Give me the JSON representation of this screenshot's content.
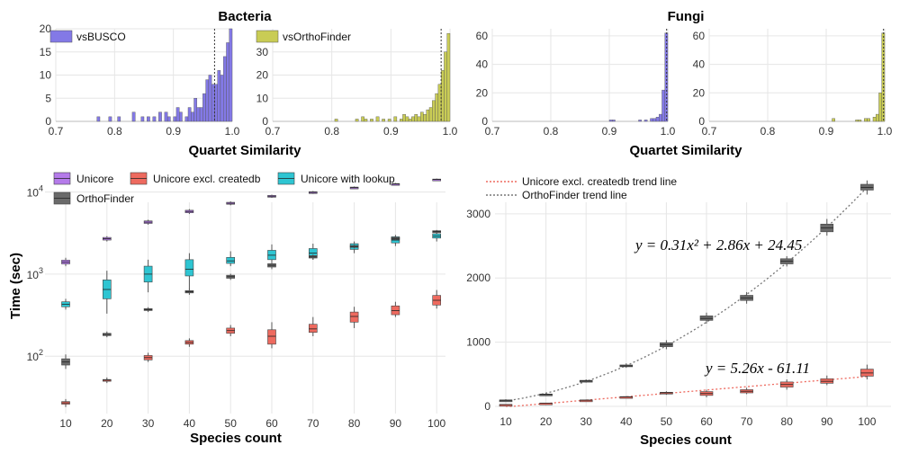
{
  "chart_data": [
    {
      "type": "bar",
      "panel": "Bacteria vsBUSCO histogram",
      "group_title": "Bacteria",
      "series": [
        {
          "name": "vsBUSCO",
          "color": "#8379E6",
          "bins": [
            [
              0.775,
              1
            ],
            [
              0.795,
              1
            ],
            [
              0.81,
              1
            ],
            [
              0.835,
              2
            ],
            [
              0.85,
              1
            ],
            [
              0.86,
              1
            ],
            [
              0.87,
              1
            ],
            [
              0.88,
              2
            ],
            [
              0.89,
              2
            ],
            [
              0.895,
              1
            ],
            [
              0.905,
              1
            ],
            [
              0.91,
              3
            ],
            [
              0.915,
              2
            ],
            [
              0.925,
              1
            ],
            [
              0.93,
              3
            ],
            [
              0.935,
              2
            ],
            [
              0.94,
              5
            ],
            [
              0.945,
              3
            ],
            [
              0.95,
              3
            ],
            [
              0.955,
              6
            ],
            [
              0.96,
              9
            ],
            [
              0.965,
              10
            ],
            [
              0.97,
              8
            ],
            [
              0.975,
              8
            ],
            [
              0.98,
              11
            ],
            [
              0.985,
              10
            ],
            [
              0.99,
              14
            ],
            [
              0.995,
              17
            ],
            [
              1.0,
              20
            ]
          ]
        }
      ],
      "xlim": [
        0.7,
        1.0
      ],
      "ylim": [
        0,
        20
      ],
      "xticks": [
        "0.7",
        "0.8",
        "0.9",
        "1.0"
      ],
      "yticks": [
        "0",
        "5",
        "10",
        "15",
        "20"
      ],
      "reference_line": 0.97
    },
    {
      "type": "bar",
      "panel": "Bacteria vsOrthoFinder histogram",
      "series": [
        {
          "name": "vsOrthoFinder",
          "color": "#C9CC55",
          "bins": [
            [
              0.81,
              1
            ],
            [
              0.845,
              1
            ],
            [
              0.855,
              2
            ],
            [
              0.86,
              1
            ],
            [
              0.87,
              1
            ],
            [
              0.88,
              2
            ],
            [
              0.89,
              1
            ],
            [
              0.9,
              1
            ],
            [
              0.91,
              2
            ],
            [
              0.92,
              1
            ],
            [
              0.925,
              3
            ],
            [
              0.93,
              2
            ],
            [
              0.935,
              1
            ],
            [
              0.94,
              2
            ],
            [
              0.945,
              3
            ],
            [
              0.95,
              2
            ],
            [
              0.955,
              4
            ],
            [
              0.96,
              3
            ],
            [
              0.965,
              5
            ],
            [
              0.97,
              6
            ],
            [
              0.975,
              9
            ],
            [
              0.98,
              12
            ],
            [
              0.985,
              16
            ],
            [
              0.99,
              22
            ],
            [
              0.995,
              30
            ],
            [
              1.0,
              38
            ]
          ]
        }
      ],
      "xlim": [
        0.7,
        1.0
      ],
      "ylim": [
        0,
        40
      ],
      "xticks": [
        "0.7",
        "0.8",
        "0.9",
        "1.0"
      ],
      "yticks": [
        "0",
        "10",
        "20",
        "30"
      ],
      "reference_line": 0.985
    },
    {
      "type": "bar",
      "panel": "Fungi vsBUSCO histogram",
      "group_title": "Fungi",
      "series": [
        {
          "name": "vsBUSCO",
          "color": "#8379E6",
          "bins": [
            [
              0.905,
              1
            ],
            [
              0.91,
              1
            ],
            [
              0.955,
              1
            ],
            [
              0.965,
              1
            ],
            [
              0.975,
              2
            ],
            [
              0.98,
              2
            ],
            [
              0.985,
              3
            ],
            [
              0.99,
              5
            ],
            [
              0.995,
              22
            ],
            [
              1.0,
              62
            ]
          ]
        }
      ],
      "xlim": [
        0.7,
        1.0
      ],
      "ylim": [
        0,
        65
      ],
      "xticks": [
        "0.7",
        "0.8",
        "0.9",
        "1.0"
      ],
      "yticks": [
        "0",
        "20",
        "40",
        "60"
      ],
      "reference_line": 0.998
    },
    {
      "type": "bar",
      "panel": "Fungi vsOrthoFinder histogram",
      "series": [
        {
          "name": "vsOrthoFinder",
          "color": "#C9CC55",
          "bins": [
            [
              0.915,
              2
            ],
            [
              0.955,
              1
            ],
            [
              0.96,
              1
            ],
            [
              0.97,
              2
            ],
            [
              0.975,
              2
            ],
            [
              0.985,
              3
            ],
            [
              0.99,
              5
            ],
            [
              0.995,
              20
            ],
            [
              1.0,
              62
            ]
          ]
        }
      ],
      "xlim": [
        0.7,
        1.0
      ],
      "ylim": [
        0,
        65
      ],
      "xticks": [
        "0.7",
        "0.8",
        "0.9",
        "1.0"
      ],
      "yticks": [
        "0",
        "20",
        "40",
        "60"
      ],
      "reference_line": 0.998
    },
    {
      "type": "box",
      "panel": "Runtime (log scale)",
      "log_scale": true,
      "xlabel": "Species count",
      "ylabel": "Time (sec)",
      "categories": [
        "10",
        "20",
        "30",
        "40",
        "50",
        "60",
        "70",
        "80",
        "90",
        "100"
      ],
      "ylim": [
        20,
        16000
      ],
      "ytick_labels": [
        {
          "value": 100,
          "base": "10",
          "exp": "2"
        },
        {
          "value": 1000,
          "base": "10",
          "exp": "3"
        },
        {
          "value": 10000,
          "base": "10",
          "exp": "4"
        }
      ],
      "legend": [
        "Unicore",
        "Unicore excl. createdb",
        "Unicore with lookup",
        "OrthoFinder"
      ],
      "series": [
        {
          "name": "Unicore",
          "color": "#B57BEA",
          "boxes": [
            [
              1250,
              1330,
              1400,
              1480,
              1580
            ],
            [
              2500,
              2600,
              2700,
              2800,
              2900
            ],
            [
              4000,
              4150,
              4300,
              4450,
              4600
            ],
            [
              5400,
              5600,
              5800,
              6000,
              6200
            ],
            [
              6900,
              7100,
              7300,
              7500,
              7700
            ],
            [
              8500,
              8700,
              8900,
              9100,
              9300
            ],
            [
              9500,
              9700,
              9900,
              10100,
              10300
            ],
            [
              10900,
              11100,
              11300,
              11500,
              11700
            ],
            [
              12100,
              12300,
              12500,
              12700,
              12900
            ],
            [
              13800,
              14000,
              14200,
              14400,
              14600
            ]
          ]
        },
        {
          "name": "Unicore excl. createdb",
          "color": "#EE6A5F",
          "boxes": [
            [
              24,
              26,
              27,
              28,
              30
            ],
            [
              47,
              50,
              51,
              52,
              55
            ],
            [
              85,
              90,
              96,
              102,
              110
            ],
            [
              130,
              140,
              147,
              155,
              165
            ],
            [
              175,
              190,
              205,
              220,
              240
            ],
            [
              125,
              140,
              175,
              210,
              260
            ],
            [
              175,
              195,
              215,
              245,
              300
            ],
            [
              220,
              260,
              305,
              345,
              400
            ],
            [
              300,
              320,
              360,
              410,
              460
            ],
            [
              380,
              420,
              480,
              550,
              640
            ]
          ]
        },
        {
          "name": "Unicore with lookup",
          "color": "#2EC5D2",
          "boxes": [
            [
              370,
              400,
              430,
              460,
              500
            ],
            [
              330,
              500,
              650,
              850,
              1100
            ],
            [
              600,
              800,
              1000,
              1250,
              1500
            ],
            [
              650,
              950,
              1150,
              1500,
              1800
            ],
            [
              1250,
              1350,
              1450,
              1600,
              1900
            ],
            [
              1250,
              1500,
              1700,
              1950,
              2300
            ],
            [
              1500,
              1650,
              1800,
              2050,
              2350
            ],
            [
              1800,
              2000,
              2200,
              2350,
              2500
            ],
            [
              2200,
              2400,
              2600,
              2850,
              3000
            ],
            [
              2500,
              2750,
              2900,
              3100,
              3300
            ]
          ]
        },
        {
          "name": "OrthoFinder",
          "color": "#6A6A6A",
          "boxes": [
            [
              70,
              78,
              85,
              93,
              105
            ],
            [
              170,
              178,
              184,
              190,
              200
            ],
            [
              345,
              360,
              370,
              380,
              395
            ],
            [
              560,
              590,
              610,
              630,
              660
            ],
            [
              850,
              890,
              930,
              970,
              1010
            ],
            [
              1150,
              1220,
              1280,
              1340,
              1400
            ],
            [
              1500,
              1570,
              1620,
              1680,
              1740
            ],
            [
              2050,
              2120,
              2170,
              2230,
              2300
            ],
            [
              2550,
              2650,
              2720,
              2800,
              2900
            ],
            [
              3100,
              3200,
              3300,
              3380,
              3450
            ]
          ]
        }
      ]
    },
    {
      "type": "box",
      "panel": "Runtime (linear scale) with trend lines",
      "xlabel": "Species count",
      "categories": [
        "10",
        "20",
        "30",
        "40",
        "50",
        "60",
        "70",
        "80",
        "90",
        "100"
      ],
      "ylim": [
        0,
        3600
      ],
      "yticks": [
        "0",
        "1000",
        "2000",
        "3000"
      ],
      "legend": [
        "Unicore excl. createdb trend line",
        "OrthoFinder trend line"
      ],
      "series": [
        {
          "name": "OrthoFinder",
          "color": "#6A6A6A",
          "boxes": [
            [
              80,
              90,
              95,
              100,
              110
            ],
            [
              170,
              180,
              186,
              192,
              200
            ],
            [
              370,
              385,
              395,
              405,
              420
            ],
            [
              600,
              620,
              630,
              645,
              670
            ],
            [
              890,
              930,
              960,
              990,
              1030
            ],
            [
              1290,
              1340,
              1370,
              1410,
              1460
            ],
            [
              1600,
              1650,
              1690,
              1730,
              1780
            ],
            [
              2180,
              2220,
              2260,
              2300,
              2340
            ],
            [
              2660,
              2720,
              2780,
              2840,
              2920
            ],
            [
              3300,
              3370,
              3410,
              3460,
              3520
            ]
          ]
        },
        {
          "name": "Unicore excl. createdb",
          "color": "#EE6A5F",
          "boxes": [
            [
              22,
              26,
              28,
              30,
              32
            ],
            [
              45,
              48,
              50,
              52,
              55
            ],
            [
              85,
              92,
              96,
              100,
              106
            ],
            [
              135,
              142,
              147,
              152,
              158
            ],
            [
              180,
              195,
              210,
              220,
              235
            ],
            [
              140,
              170,
              200,
              230,
              260
            ],
            [
              190,
              210,
              235,
              260,
              290
            ],
            [
              260,
              300,
              340,
              380,
              420
            ],
            [
              330,
              360,
              390,
              430,
              480
            ],
            [
              420,
              470,
              520,
              580,
              650
            ]
          ]
        }
      ],
      "trend_lines": [
        {
          "name": "Unicore excl. createdb trend line",
          "a": 0,
          "b": 5.26,
          "c": -61.11,
          "equation": "y = 5.26x - 61.11"
        },
        {
          "name": "OrthoFinder trend line",
          "a": 0.31,
          "b": 2.86,
          "c": 24.45,
          "equation": "y = 0.31x² + 2.86x + 24.45"
        }
      ]
    }
  ],
  "texts": {
    "bacteria_title": "Bacteria",
    "fungi_title": "Fungi",
    "quartet_xlabel_left": "Quartet Similarity",
    "quartet_xlabel_right": "Quartet Similarity",
    "time_ylabel": "Time (sec)",
    "species_xlabel_left": "Species count",
    "species_xlabel_right": "Species count",
    "eq_quadratic": "y = 0.31x² + 2.86x + 24.45",
    "eq_linear": "y = 5.26x - 61.11"
  }
}
